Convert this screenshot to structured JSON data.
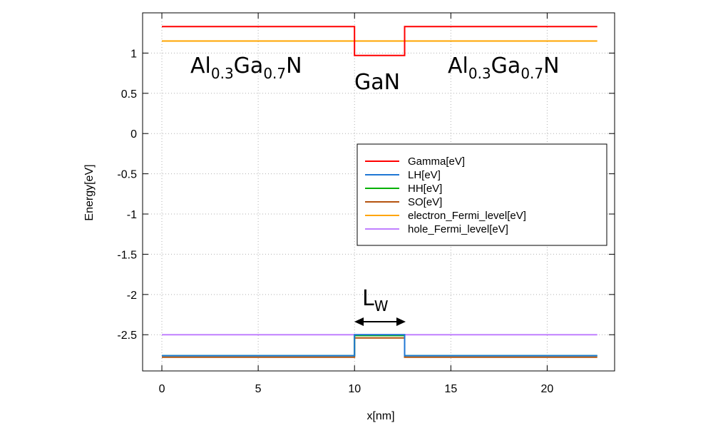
{
  "chart_data": {
    "type": "line",
    "xlabel": "x[nm]",
    "ylabel": "Energy[eV]",
    "xlim": [
      -1,
      23.5
    ],
    "ylim": [
      -2.95,
      1.5
    ],
    "xticks": [
      0,
      5,
      10,
      15,
      20
    ],
    "xtick_labels": [
      "0",
      "5",
      "10",
      "15",
      "20"
    ],
    "yticks": [
      1,
      0.5,
      0,
      -0.5,
      -1,
      -1.5,
      -2,
      -2.5
    ],
    "ytick_labels": [
      "1",
      "0.5",
      "0",
      "-0.5",
      "-1",
      "-1.5",
      "-2",
      "-2.5"
    ],
    "grid": true,
    "legend_position": "right",
    "series": [
      {
        "name": "Gamma[eV]",
        "color": "#ff0000",
        "x": [
          0,
          10,
          10,
          12.6,
          12.6,
          22.6
        ],
        "y": [
          1.33,
          1.33,
          0.97,
          0.97,
          1.33,
          1.33
        ]
      },
      {
        "name": "LH[eV]",
        "color": "#1f77d4",
        "x": [
          0,
          10,
          10,
          12.6,
          12.6,
          22.6
        ],
        "y": [
          -2.76,
          -2.76,
          -2.5,
          -2.5,
          -2.76,
          -2.76
        ]
      },
      {
        "name": "HH[eV]",
        "color": "#00b000",
        "x": [
          0,
          10,
          10,
          12.6,
          12.6,
          22.6
        ],
        "y": [
          -2.76,
          -2.76,
          -2.51,
          -2.51,
          -2.76,
          -2.76
        ]
      },
      {
        "name": "SO[eV]",
        "color": "#b5530f",
        "x": [
          0,
          10,
          10,
          12.6,
          12.6,
          22.6
        ],
        "y": [
          -2.78,
          -2.78,
          -2.54,
          -2.54,
          -2.78,
          -2.78
        ]
      },
      {
        "name": "electron_Fermi_level[eV]",
        "color": "#ffa500",
        "x": [
          0,
          22.6
        ],
        "y": [
          1.15,
          1.15
        ]
      },
      {
        "name": "hole_Fermi_level[eV]",
        "color": "#c080ff",
        "x": [
          0,
          22.6
        ],
        "y": [
          -2.5,
          -2.5
        ]
      }
    ],
    "annotations": [
      {
        "id": "label-left",
        "text": "Al",
        "sub1": "0.3",
        "mid": "Ga",
        "sub2": "0.7",
        "end": "N"
      },
      {
        "id": "label-well",
        "text": "GaN"
      },
      {
        "id": "label-right",
        "text": "Al",
        "sub1": "0.3",
        "mid": "Ga",
        "sub2": "0.7",
        "end": "N"
      },
      {
        "id": "label-width",
        "text": "L",
        "sub": "W"
      }
    ]
  }
}
